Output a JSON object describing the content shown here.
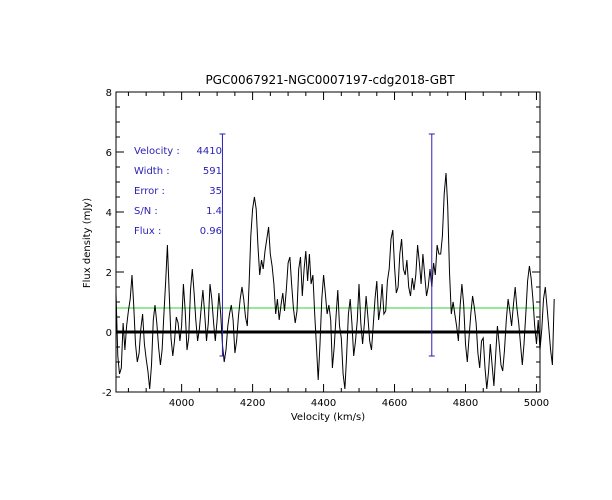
{
  "chart_data": {
    "type": "line",
    "title": "PGC0067921-NGC0007197-cdg2018-GBT",
    "xlabel": "Velocity (km/s)",
    "ylabel": "Flux density (mJy)",
    "xlim": [
      3815,
      5010
    ],
    "ylim": [
      -2,
      8
    ],
    "x_ticks": [
      4000,
      4200,
      4400,
      4600,
      4800,
      5000
    ],
    "y_ticks": [
      -2,
      0,
      2,
      4,
      6,
      8
    ],
    "baseline": 0,
    "mean_flux_level": 0.8,
    "velocity_window": [
      4115,
      4705
    ],
    "window_marker_range": [
      -0.8,
      6.6
    ],
    "spectrum": {
      "x_start": 3815,
      "x_step": 5,
      "y": [
        1.3,
        -0.8,
        -1.4,
        -1.2,
        0.3,
        -0.6,
        0.2,
        0.7,
        1.1,
        1.9,
        0.9,
        -0.4,
        -1.0,
        -0.7,
        0.1,
        0.6,
        -0.4,
        -0.9,
        -1.3,
        -1.9,
        -1.1,
        0.4,
        0.9,
        0.3,
        -0.5,
        -1.1,
        -0.6,
        0.6,
        1.7,
        2.9,
        1.3,
        -0.2,
        -0.8,
        -0.3,
        0.5,
        0.3,
        -0.3,
        0.2,
        1.6,
        0.7,
        -0.6,
        -0.2,
        1.4,
        2.1,
        1.3,
        0.4,
        -0.3,
        0.1,
        0.8,
        1.4,
        0.6,
        -0.3,
        0.3,
        1.6,
        1.1,
        0.3,
        -0.3,
        0.4,
        1.3,
        0.6,
        -0.4,
        -1.0,
        -0.6,
        0.2,
        0.6,
        0.9,
        0.4,
        -0.7,
        -0.3,
        0.5,
        1.1,
        1.5,
        1.1,
        0.5,
        0.2,
        1.6,
        3.2,
        4.1,
        4.5,
        4.1,
        2.9,
        1.9,
        2.4,
        2.1,
        2.7,
        3.1,
        3.5,
        2.6,
        2.2,
        1.6,
        0.6,
        1.1,
        0.4,
        0.9,
        1.3,
        0.7,
        1.4,
        2.3,
        2.5,
        1.6,
        0.8,
        0.3,
        0.7,
        2.1,
        2.5,
        1.2,
        2.1,
        2.7,
        1.7,
        2.6,
        1.6,
        1.9,
        0.6,
        -0.5,
        -1.6,
        -0.4,
        1.1,
        1.9,
        1.3,
        0.6,
        0.9,
        0.4,
        -1.2,
        -0.5,
        0.5,
        1.4,
        0.2,
        -0.2,
        -1.4,
        -1.9,
        -0.8,
        0.6,
        1.1,
        0.3,
        -0.8,
        -0.3,
        0.4,
        1.6,
        0.3,
        -0.4,
        0.3,
        1.2,
        0.5,
        -0.3,
        -0.6,
        0.2,
        1.1,
        1.7,
        0.4,
        0.8,
        1.6,
        0.6,
        0.7,
        1.7,
        2.1,
        3.1,
        3.4,
        2.2,
        1.3,
        1.5,
        2.6,
        3.1,
        2.1,
        1.9,
        2.4,
        1.5,
        1.2,
        1.8,
        1.4,
        1.9,
        2.9,
        2.3,
        1.6,
        2.6,
        1.9,
        1.2,
        1.5,
        2.1,
        1.5,
        2.3,
        1.9,
        2.9,
        2.6,
        2.6,
        3.2,
        4.6,
        5.3,
        4.2,
        2.0,
        0.6,
        1.0,
        0.6,
        0.2,
        -0.3,
        0.9,
        1.6,
        0.9,
        -0.4,
        -1.0,
        -0.2,
        0.6,
        1.2,
        0.8,
        0.3,
        -0.7,
        -1.2,
        -0.3,
        -0.2,
        -1.2,
        -1.9,
        -1.3,
        -0.4,
        -1.1,
        -1.8,
        -0.8,
        0.2,
        -0.4,
        -1.1,
        -1.3,
        -0.6,
        0.4,
        1.1,
        0.7,
        0.2,
        0.9,
        1.5,
        0.8,
        0.3,
        -0.4,
        -1.1,
        -0.4,
        0.6,
        1.7,
        2.2,
        1.8,
        1.1,
        0.2,
        -0.4,
        0.4,
        -0.6,
        0.1,
        1.1,
        1.5,
        0.8,
        0.1,
        -0.6,
        -1.1,
        1.1
      ]
    },
    "annotations": [
      {
        "label": "Velocity :",
        "value": "4410"
      },
      {
        "label": "Width :",
        "value": "591"
      },
      {
        "label": "Error :",
        "value": "35"
      },
      {
        "label": "S/N :",
        "value": "1.4"
      },
      {
        "label": "Flux :",
        "value": "0.96"
      }
    ],
    "colors": {
      "spectrum": "#000000",
      "baseline": "#000000",
      "mean_level": "#2fd12f",
      "markers": "#2b1fb4",
      "annotations": "#2b1fb4"
    }
  }
}
